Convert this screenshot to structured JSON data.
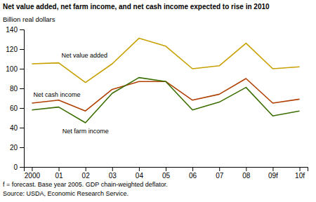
{
  "chart_data": {
    "type": "line",
    "title": "Net value added, net farm income, and net cash income expected to rise in 2010",
    "ylabel": "Billion real dollars",
    "footnotes": [
      "f = forecast. Base year 2005. GDP chain-weighted deflator.",
      "Source: USDA, Economic Research Service."
    ],
    "categories": [
      "2000",
      "01",
      "02",
      "03",
      "04",
      "05",
      "06",
      "07",
      "08",
      "09f",
      "10f"
    ],
    "series": [
      {
        "name": "Net value added",
        "color": "#c8a000",
        "values": [
          105,
          106,
          86,
          105,
          131,
          123,
          100,
          103,
          126,
          100,
          102
        ]
      },
      {
        "name": "Net cash income",
        "color": "#b04000",
        "values": [
          65,
          68,
          57,
          79,
          87,
          87,
          68,
          74,
          90,
          65,
          69
        ]
      },
      {
        "name": "Net farm income",
        "color": "#3a6e00",
        "values": [
          58,
          61,
          45,
          75,
          91,
          87,
          58,
          66,
          81,
          52,
          57
        ]
      }
    ],
    "ylim": [
      0,
      140
    ],
    "yticks": [
      0,
      20,
      40,
      60,
      80,
      100,
      120,
      140
    ],
    "grid": false
  }
}
